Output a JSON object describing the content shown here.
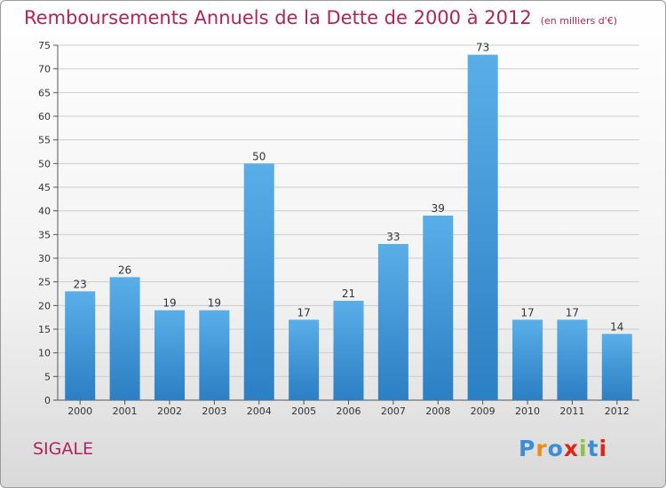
{
  "title": "Remboursements Annuels de la Dette de 2000 à 2012",
  "subtitle": "(en milliers d'€)",
  "commune": "SIGALE",
  "logo": {
    "text": "Proxiti",
    "letter_colors": [
      "#3a8dd6",
      "#f08a18",
      "#3a8dd6",
      "#e2231a",
      "#8bc53f",
      "#3a8dd6",
      "#e2231a"
    ]
  },
  "colors": {
    "title": "#b0245a",
    "bar_top": "#5aaee8",
    "bar_bottom": "#2b7fc3",
    "grid": "#cccccc"
  },
  "chart_data": {
    "type": "bar",
    "categories": [
      "2000",
      "2001",
      "2002",
      "2003",
      "2004",
      "2005",
      "2006",
      "2007",
      "2008",
      "2009",
      "2010",
      "2011",
      "2012"
    ],
    "values": [
      23,
      26,
      19,
      19,
      50,
      17,
      21,
      33,
      39,
      73,
      17,
      17,
      14
    ],
    "ylim": [
      0,
      75
    ],
    "yticks": [
      0,
      5,
      10,
      15,
      20,
      25,
      30,
      35,
      40,
      45,
      50,
      55,
      60,
      65,
      70,
      75
    ],
    "grid": true
  }
}
